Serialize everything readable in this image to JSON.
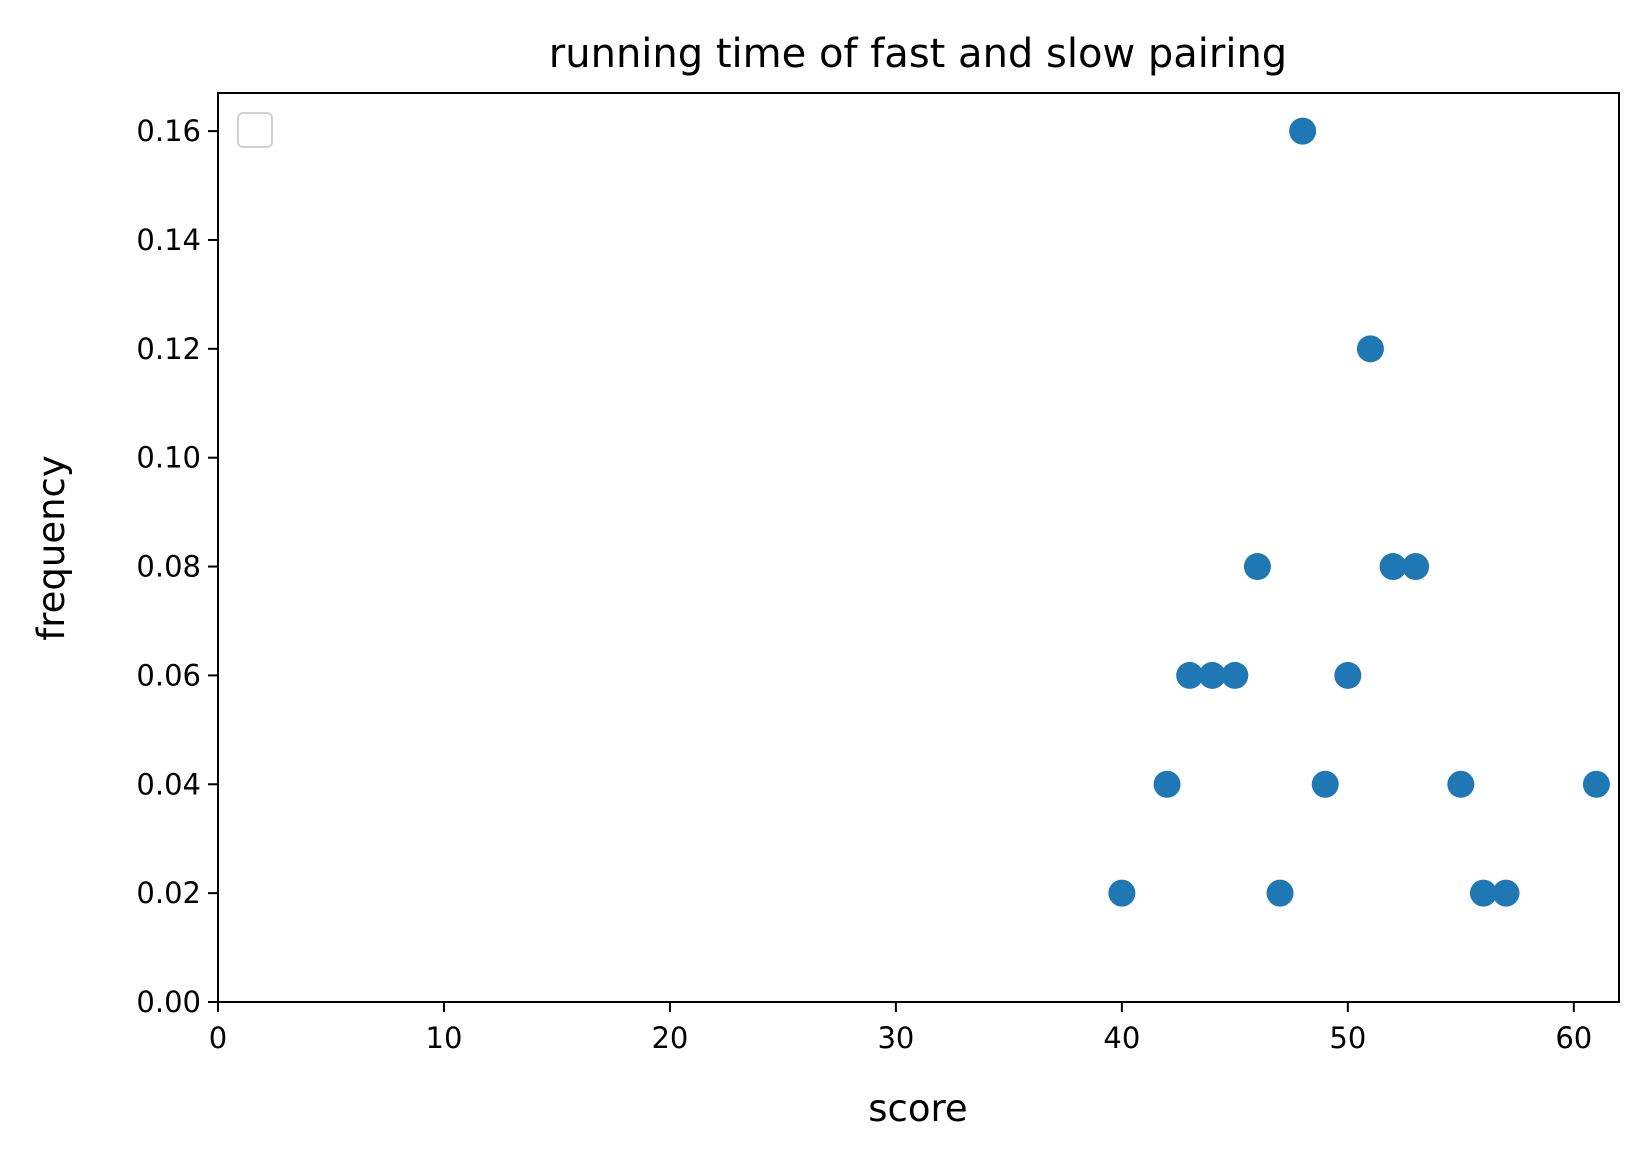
{
  "chart_data": {
    "type": "scatter",
    "title": "running time of fast and slow pairing",
    "xlabel": "score",
    "ylabel": "frequency",
    "xlim": [
      0,
      62
    ],
    "ylim": [
      0,
      0.167
    ],
    "grid": false,
    "legend": "top-left (empty)",
    "x_ticks": [
      "0",
      "10",
      "20",
      "30",
      "40",
      "50",
      "60"
    ],
    "y_ticks": [
      "0.00",
      "0.02",
      "0.04",
      "0.06",
      "0.08",
      "0.10",
      "0.12",
      "0.14",
      "0.16"
    ],
    "marker_color": "#1f77b4",
    "series": [
      {
        "points": [
          {
            "x": 40,
            "y": 0.02
          },
          {
            "x": 42,
            "y": 0.04
          },
          {
            "x": 43,
            "y": 0.06
          },
          {
            "x": 44,
            "y": 0.06
          },
          {
            "x": 45,
            "y": 0.06
          },
          {
            "x": 46,
            "y": 0.08
          },
          {
            "x": 47,
            "y": 0.02
          },
          {
            "x": 48,
            "y": 0.16
          },
          {
            "x": 49,
            "y": 0.04
          },
          {
            "x": 50,
            "y": 0.06
          },
          {
            "x": 51,
            "y": 0.12
          },
          {
            "x": 52,
            "y": 0.08
          },
          {
            "x": 53,
            "y": 0.08
          },
          {
            "x": 55,
            "y": 0.04
          },
          {
            "x": 56,
            "y": 0.02
          },
          {
            "x": 57,
            "y": 0.02
          },
          {
            "x": 61,
            "y": 0.04
          }
        ]
      }
    ]
  }
}
